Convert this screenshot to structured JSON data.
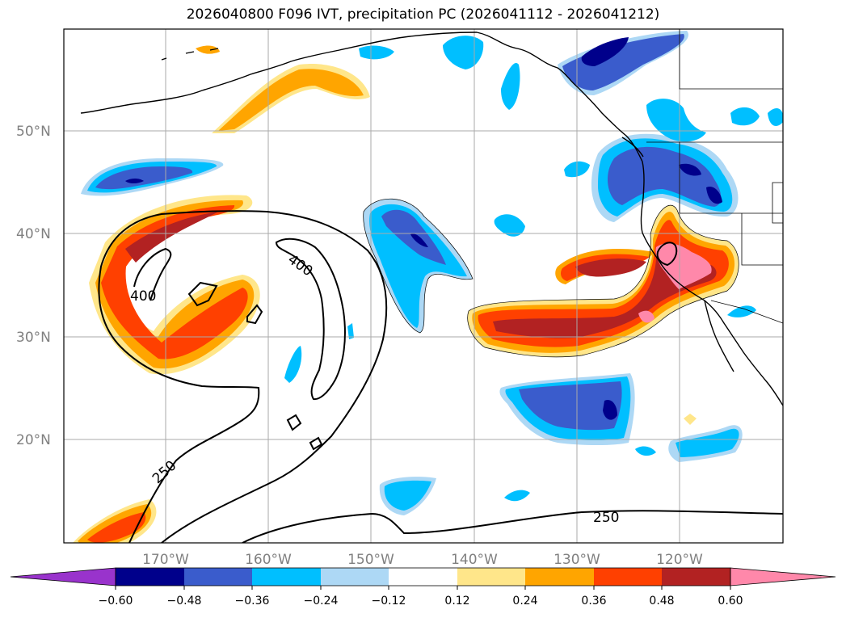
{
  "title": "2026040800 F096 IVT, precipitation PC (2026041112 - 2026041212)",
  "colors": {
    "purple": "#9933cc",
    "navy": "#00008b",
    "royal": "#3a5ccc",
    "cyan": "#00bfff",
    "light_blue": "#add8f5",
    "white": "#ffffff",
    "pale_yellow": "#ffe68a",
    "orange": "#ffa500",
    "red_orange": "#ff4000",
    "dark_red": "#b22222",
    "pink": "#ff88aa"
  },
  "lat_labels": [
    "50°N",
    "40°N",
    "30°N",
    "20°N"
  ],
  "lon_labels": [
    "170°W",
    "160°W",
    "150°W",
    "140°W",
    "130°W",
    "120°W"
  ],
  "colorbar": {
    "ticks": [
      "−0.60",
      "−0.48",
      "−0.36",
      "−0.24",
      "−0.12",
      "0.12",
      "0.24",
      "0.36",
      "0.48",
      "0.60"
    ]
  },
  "contour_labels": [
    "400",
    "400",
    "250",
    "250"
  ]
}
